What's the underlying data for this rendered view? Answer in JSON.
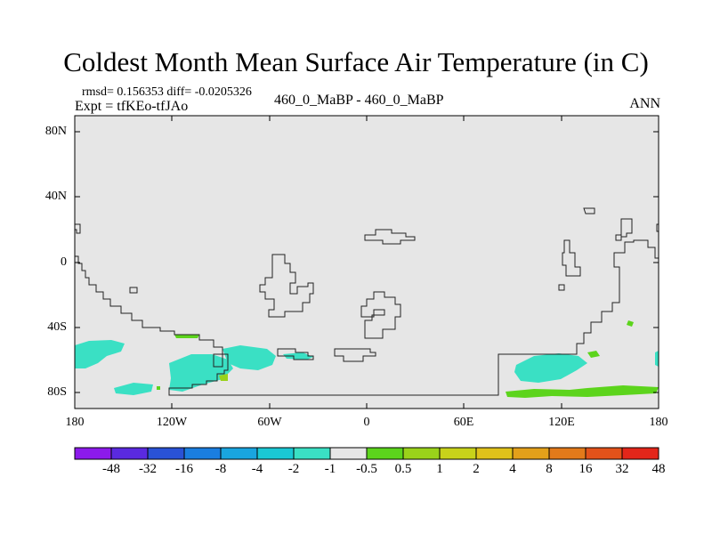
{
  "title": "Coldest Month Mean Surface Air Temperature (in C)",
  "stats_line": "rmsd= 0.156353 diff= -0.0205326",
  "experiment_line": "Expt = tfKEo-tfJAo",
  "center_label": "460_0_MaBP - 460_0_MaBP",
  "season_label": "ANN",
  "map": {
    "background_color": "#e6e6e6",
    "lat_ticks": [
      "80N",
      "40N",
      "0",
      "40S",
      "80S"
    ],
    "lon_ticks": [
      "180",
      "120W",
      "60W",
      "0",
      "60E",
      "120E",
      "180"
    ]
  },
  "colorbar": {
    "labels": [
      "-48",
      "-32",
      "-16",
      "-8",
      "-4",
      "-2",
      "-1",
      "-0.5",
      "0.5",
      "1",
      "2",
      "4",
      "8",
      "16",
      "32",
      "48"
    ],
    "colors": [
      "#8c1aeb",
      "#5a2ae0",
      "#2a52d6",
      "#1a7ee0",
      "#19a5e0",
      "#1ac8d4",
      "#3ae0c4",
      "#e6e6e6",
      "#5cd41c",
      "#9ad21a",
      "#c8d21a",
      "#e0c21a",
      "#e3a01a",
      "#e37a1a",
      "#e3521a",
      "#e3261a"
    ]
  }
}
